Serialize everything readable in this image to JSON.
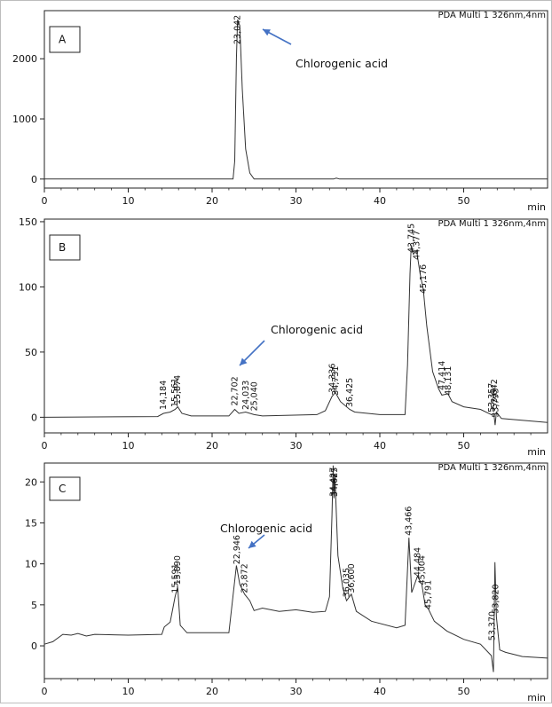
{
  "chart_data": [
    {
      "type": "line",
      "panel": "A",
      "header": "PDA Multi 1 326nm,4nm",
      "xlabel": "min",
      "ylabel": "",
      "xlim": [
        0,
        60
      ],
      "ylim": [
        -150,
        2800
      ],
      "xticks": [
        0,
        10,
        20,
        30,
        40,
        50
      ],
      "yticks": [
        0,
        1000,
        2000
      ],
      "annotation": "Chlorogenic acid",
      "peak_labels": [
        {
          "t": 23.042,
          "label": "23,042",
          "value": 2650
        }
      ],
      "series": [
        {
          "values": [
            [
              0,
              0
            ],
            [
              22.5,
              0
            ],
            [
              22.7,
              300
            ],
            [
              22.9,
              2000
            ],
            [
              23.04,
              2650
            ],
            [
              23.3,
              2550
            ],
            [
              23.6,
              1500
            ],
            [
              24.0,
              500
            ],
            [
              24.5,
              100
            ],
            [
              25,
              0
            ],
            [
              34.5,
              0
            ],
            [
              34.8,
              15
            ],
            [
              35.2,
              0
            ],
            [
              60,
              0
            ]
          ]
        }
      ]
    },
    {
      "type": "line",
      "panel": "B",
      "header": "PDA Multi 1 326nm,4nm",
      "xlabel": "min",
      "ylabel": "",
      "xlim": [
        0,
        60
      ],
      "ylim": [
        -12,
        152
      ],
      "xticks": [
        0,
        10,
        20,
        30,
        40,
        50
      ],
      "yticks": [
        0,
        50,
        100,
        150
      ],
      "annotation": "Chlorogenic acid",
      "peak_labels": [
        {
          "t": 14.184,
          "label": "14,184",
          "value": 3
        },
        {
          "t": 15.561,
          "label": "15,561",
          "value": 5
        },
        {
          "t": 15.874,
          "label": "15,874",
          "value": 7
        },
        {
          "t": 22.702,
          "label": "22,702",
          "value": 6
        },
        {
          "t": 24.033,
          "label": "24,033",
          "value": 3
        },
        {
          "t": 25.04,
          "label": "25,040",
          "value": 2
        },
        {
          "t": 34.336,
          "label": "34,336",
          "value": 16
        },
        {
          "t": 34.731,
          "label": "34,731",
          "value": 14
        },
        {
          "t": 36.425,
          "label": "36,425",
          "value": 5
        },
        {
          "t": 43.745,
          "label": "43,745",
          "value": 130
        },
        {
          "t": 44.377,
          "label": "44,377",
          "value": 118
        },
        {
          "t": 45.176,
          "label": "45,176",
          "value": 92
        },
        {
          "t": 47.414,
          "label": "47,414",
          "value": 18
        },
        {
          "t": 48.131,
          "label": "48,131",
          "value": 14
        },
        {
          "t": 53.357,
          "label": "53,357",
          "value": 1
        },
        {
          "t": 53.642,
          "label": "53,642",
          "value": 4
        },
        {
          "t": 53.793,
          "label": "53,793",
          "value": -3
        }
      ],
      "series": [
        {
          "values": [
            [
              0,
              0
            ],
            [
              13.5,
              0.5
            ],
            [
              14.2,
              3
            ],
            [
              15,
              4
            ],
            [
              15.6,
              6
            ],
            [
              15.9,
              8
            ],
            [
              16.4,
              3
            ],
            [
              17.5,
              1
            ],
            [
              22,
              1
            ],
            [
              22.7,
              6
            ],
            [
              23.2,
              3
            ],
            [
              24.0,
              4
            ],
            [
              25,
              2
            ],
            [
              26,
              1
            ],
            [
              32.5,
              2
            ],
            [
              33.5,
              5
            ],
            [
              34.3,
              16
            ],
            [
              34.7,
              19
            ],
            [
              35.3,
              12
            ],
            [
              36.4,
              6
            ],
            [
              37,
              4
            ],
            [
              40,
              2
            ],
            [
              43,
              2
            ],
            [
              43.3,
              40
            ],
            [
              43.6,
              110
            ],
            [
              43.75,
              132
            ],
            [
              44.0,
              125
            ],
            [
              44.38,
              128
            ],
            [
              44.8,
              110
            ],
            [
              45.18,
              98
            ],
            [
              45.6,
              70
            ],
            [
              46.3,
              35
            ],
            [
              47.0,
              22
            ],
            [
              47.4,
              17
            ],
            [
              48.13,
              18
            ],
            [
              48.6,
              12
            ],
            [
              50,
              8
            ],
            [
              52,
              6
            ],
            [
              53.3,
              2
            ],
            [
              53.6,
              3
            ],
            [
              53.75,
              -6
            ],
            [
              53.9,
              4
            ],
            [
              54.5,
              -1
            ],
            [
              60,
              -4
            ]
          ]
        }
      ]
    },
    {
      "type": "line",
      "panel": "C",
      "header": "PDA Multi 1 326nm,4nm",
      "xlabel": "min",
      "ylabel": "",
      "xlim": [
        0,
        60
      ],
      "ylim": [
        -4,
        22.3
      ],
      "xticks": [
        0,
        10,
        20,
        30,
        40,
        50
      ],
      "yticks": [
        0,
        5,
        10,
        15,
        20
      ],
      "annotation": "Chlorogenic acid",
      "peak_labels": [
        {
          "t": 15.591,
          "label": "15,591",
          "value": 6
        },
        {
          "t": 15.89,
          "label": "15,890",
          "value": 7
        },
        {
          "t": 22.946,
          "label": "22,946",
          "value": 9.5
        },
        {
          "t": 23.872,
          "label": "23,872",
          "value": 6
        },
        {
          "t": 34.427,
          "label": "34,427",
          "value": 22
        },
        {
          "t": 34.625,
          "label": "34,625",
          "value": 21
        },
        {
          "t": 36.035,
          "label": "36,035",
          "value": 5.5
        },
        {
          "t": 36.6,
          "label": "36,600",
          "value": 6
        },
        {
          "t": 43.466,
          "label": "43,466",
          "value": 13
        },
        {
          "t": 44.484,
          "label": "44,484",
          "value": 8
        },
        {
          "t": 45.004,
          "label": "45,004",
          "value": 7
        },
        {
          "t": 45.791,
          "label": "45,791",
          "value": 4
        },
        {
          "t": 53.37,
          "label": "53,370",
          "value": 0.2
        },
        {
          "t": 53.82,
          "label": "53,820",
          "value": 3.5
        }
      ],
      "series": [
        {
          "values": [
            [
              0,
              0.2
            ],
            [
              1,
              0.5
            ],
            [
              2.2,
              1.4
            ],
            [
              3.2,
              1.3
            ],
            [
              4,
              1.5
            ],
            [
              5,
              1.2
            ],
            [
              6,
              1.4
            ],
            [
              10,
              1.3
            ],
            [
              14,
              1.4
            ],
            [
              14.3,
              2.3
            ],
            [
              15,
              2.9
            ],
            [
              15.59,
              6
            ],
            [
              15.89,
              7.2
            ],
            [
              16.2,
              2.5
            ],
            [
              17,
              1.6
            ],
            [
              22,
              1.6
            ],
            [
              22.9,
              9.8
            ],
            [
              23.3,
              7.5
            ],
            [
              23.87,
              6.3
            ],
            [
              24.5,
              5.5
            ],
            [
              25,
              4.3
            ],
            [
              26,
              4.6
            ],
            [
              28,
              4.2
            ],
            [
              30,
              4.4
            ],
            [
              32,
              4.1
            ],
            [
              33.5,
              4.2
            ],
            [
              34.0,
              6
            ],
            [
              34.3,
              16
            ],
            [
              34.43,
              22
            ],
            [
              34.53,
              18
            ],
            [
              34.63,
              21
            ],
            [
              35.0,
              11
            ],
            [
              35.6,
              7
            ],
            [
              36.035,
              5.5
            ],
            [
              36.6,
              6.3
            ],
            [
              37.2,
              4.2
            ],
            [
              39,
              3
            ],
            [
              42,
              2.2
            ],
            [
              43.0,
              2.5
            ],
            [
              43.466,
              13.2
            ],
            [
              43.8,
              6.5
            ],
            [
              44.484,
              8.5
            ],
            [
              45.004,
              7.5
            ],
            [
              45.4,
              5
            ],
            [
              45.791,
              4.5
            ],
            [
              46.5,
              3
            ],
            [
              48,
              1.8
            ],
            [
              50,
              0.8
            ],
            [
              52,
              0.2
            ],
            [
              53.3,
              -1.2
            ],
            [
              53.55,
              -3.2
            ],
            [
              53.72,
              10.2
            ],
            [
              53.9,
              3.5
            ],
            [
              54.3,
              -0.5
            ],
            [
              55,
              -0.8
            ],
            [
              57,
              -1.3
            ],
            [
              60,
              -1.5
            ]
          ]
        }
      ]
    }
  ]
}
